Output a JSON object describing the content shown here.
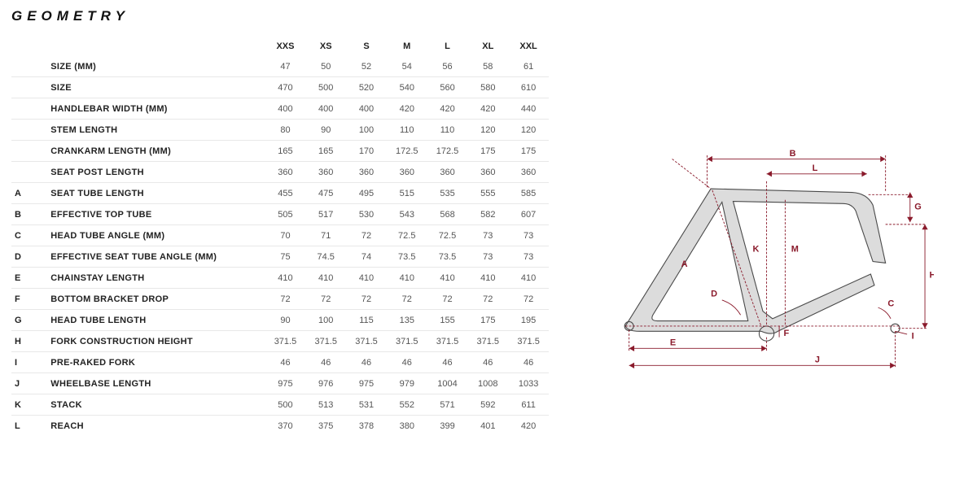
{
  "title": "GEOMETRY",
  "sizes": [
    "XXS",
    "XS",
    "S",
    "M",
    "L",
    "XL",
    "XXL"
  ],
  "rows": [
    {
      "letter": "",
      "label": "SIZE (MM)",
      "vals": [
        "47",
        "50",
        "52",
        "54",
        "56",
        "58",
        "61"
      ]
    },
    {
      "letter": "",
      "label": "SIZE",
      "vals": [
        "470",
        "500",
        "520",
        "540",
        "560",
        "580",
        "610"
      ]
    },
    {
      "letter": "",
      "label": "HANDLEBAR WIDTH (MM)",
      "vals": [
        "400",
        "400",
        "400",
        "420",
        "420",
        "420",
        "440"
      ]
    },
    {
      "letter": "",
      "label": "STEM LENGTH",
      "vals": [
        "80",
        "90",
        "100",
        "110",
        "110",
        "120",
        "120"
      ]
    },
    {
      "letter": "",
      "label": "CRANKARM LENGTH (MM)",
      "vals": [
        "165",
        "165",
        "170",
        "172.5",
        "172.5",
        "175",
        "175"
      ]
    },
    {
      "letter": "",
      "label": "SEAT POST LENGTH",
      "vals": [
        "360",
        "360",
        "360",
        "360",
        "360",
        "360",
        "360"
      ]
    },
    {
      "letter": "A",
      "label": "SEAT TUBE LENGTH",
      "vals": [
        "455",
        "475",
        "495",
        "515",
        "535",
        "555",
        "585"
      ]
    },
    {
      "letter": "B",
      "label": "EFFECTIVE TOP TUBE",
      "vals": [
        "505",
        "517",
        "530",
        "543",
        "568",
        "582",
        "607"
      ]
    },
    {
      "letter": "C",
      "label": "HEAD TUBE ANGLE (MM)",
      "vals": [
        "70",
        "71",
        "72",
        "72.5",
        "72.5",
        "73",
        "73"
      ]
    },
    {
      "letter": "D",
      "label": "EFFECTIVE SEAT TUBE ANGLE (MM)",
      "vals": [
        "75",
        "74.5",
        "74",
        "73.5",
        "73.5",
        "73",
        "73"
      ]
    },
    {
      "letter": "E",
      "label": "CHAINSTAY LENGTH",
      "vals": [
        "410",
        "410",
        "410",
        "410",
        "410",
        "410",
        "410"
      ]
    },
    {
      "letter": "F",
      "label": "BOTTOM BRACKET DROP",
      "vals": [
        "72",
        "72",
        "72",
        "72",
        "72",
        "72",
        "72"
      ]
    },
    {
      "letter": "G",
      "label": "HEAD TUBE LENGTH",
      "vals": [
        "90",
        "100",
        "115",
        "135",
        "155",
        "175",
        "195"
      ]
    },
    {
      "letter": "H",
      "label": "FORK CONSTRUCTION HEIGHT",
      "vals": [
        "371.5",
        "371.5",
        "371.5",
        "371.5",
        "371.5",
        "371.5",
        "371.5"
      ]
    },
    {
      "letter": "I",
      "label": "PRE-RAKED FORK",
      "vals": [
        "46",
        "46",
        "46",
        "46",
        "46",
        "46",
        "46"
      ]
    },
    {
      "letter": "J",
      "label": "WHEELBASE LENGTH",
      "vals": [
        "975",
        "976",
        "975",
        "979",
        "1004",
        "1008",
        "1033"
      ]
    },
    {
      "letter": "K",
      "label": "STACK",
      "vals": [
        "500",
        "513",
        "531",
        "552",
        "571",
        "592",
        "611"
      ]
    },
    {
      "letter": "L",
      "label": "REACH",
      "vals": [
        "370",
        "375",
        "378",
        "380",
        "399",
        "401",
        "420"
      ]
    }
  ],
  "diagram": {
    "width_ratio": 420,
    "frame_fill": "#dcdcdc",
    "frame_stroke": "#4a4a4a",
    "dim_color": "#8a1a2b",
    "labels": [
      "A",
      "B",
      "C",
      "D",
      "E",
      "F",
      "G",
      "H",
      "I",
      "J",
      "K",
      "L",
      "M"
    ]
  }
}
